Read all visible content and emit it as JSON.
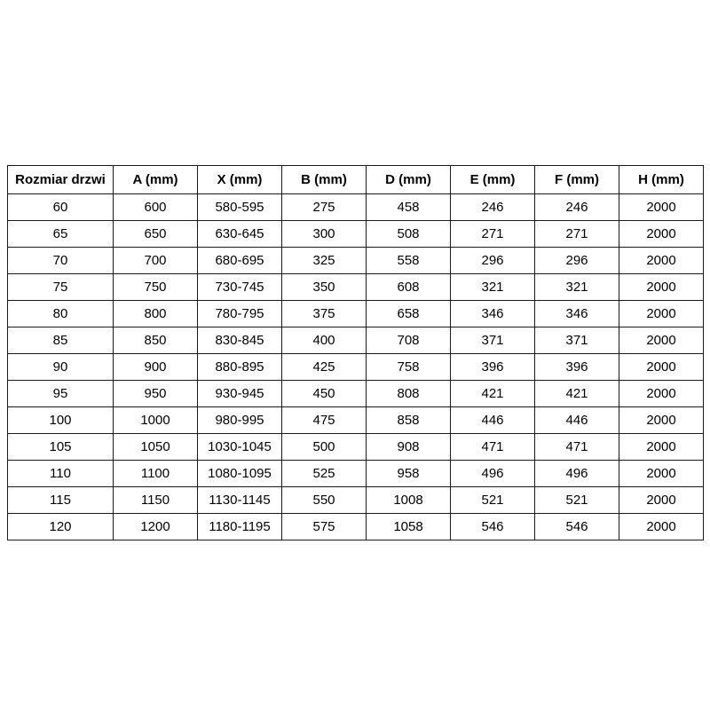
{
  "page": {
    "background": "#ffffff"
  },
  "colors": {
    "table_border": "#1a1a1a",
    "text": "#000000",
    "cell_background": "#ffffff"
  },
  "chart_data": {
    "type": "table",
    "title": "",
    "columns": [
      "Rozmiar drzwi",
      "A (mm)",
      "X (mm)",
      "B (mm)",
      "D (mm)",
      "E (mm)",
      "F (mm)",
      "H (mm)"
    ],
    "rows": [
      [
        "60",
        "600",
        "580-595",
        "275",
        "458",
        "246",
        "246",
        "2000"
      ],
      [
        "65",
        "650",
        "630-645",
        "300",
        "508",
        "271",
        "271",
        "2000"
      ],
      [
        "70",
        "700",
        "680-695",
        "325",
        "558",
        "296",
        "296",
        "2000"
      ],
      [
        "75",
        "750",
        "730-745",
        "350",
        "608",
        "321",
        "321",
        "2000"
      ],
      [
        "80",
        "800",
        "780-795",
        "375",
        "658",
        "346",
        "346",
        "2000"
      ],
      [
        "85",
        "850",
        "830-845",
        "400",
        "708",
        "371",
        "371",
        "2000"
      ],
      [
        "90",
        "900",
        "880-895",
        "425",
        "758",
        "396",
        "396",
        "2000"
      ],
      [
        "95",
        "950",
        "930-945",
        "450",
        "808",
        "421",
        "421",
        "2000"
      ],
      [
        "100",
        "1000",
        "980-995",
        "475",
        "858",
        "446",
        "446",
        "2000"
      ],
      [
        "105",
        "1050",
        "1030-1045",
        "500",
        "908",
        "471",
        "471",
        "2000"
      ],
      [
        "110",
        "1100",
        "1080-1095",
        "525",
        "958",
        "496",
        "496",
        "2000"
      ],
      [
        "115",
        "1150",
        "1130-1145",
        "550",
        "1008",
        "521",
        "521",
        "2000"
      ],
      [
        "120",
        "1200",
        "1180-1195",
        "575",
        "1058",
        "546",
        "546",
        "2000"
      ]
    ],
    "layout": {
      "grid": true,
      "header_bold": true,
      "text_align": "center"
    }
  }
}
